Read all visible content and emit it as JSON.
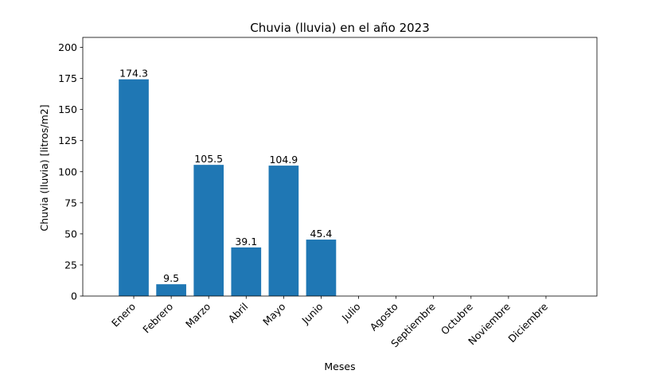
{
  "chart_data": {
    "type": "bar",
    "title": "Chuvia (lluvia) en el año 2023",
    "xlabel": "Meses",
    "ylabel": "Chuvia (lluvia) [litros/m2]",
    "categories": [
      "Enero",
      "Febrero",
      "Marzo",
      "Abril",
      "Mayo",
      "Junio",
      "Julio",
      "Agosto",
      "Septiembre",
      "Octubre",
      "Noviembre",
      "Diciembre"
    ],
    "values": [
      174.3,
      9.5,
      105.5,
      39.1,
      104.9,
      45.4,
      null,
      null,
      null,
      null,
      null,
      null
    ],
    "data_labels": [
      "174.3",
      "9.5",
      "105.5",
      "39.1",
      "104.9",
      "45.4",
      "",
      "",
      "",
      "",
      "",
      ""
    ],
    "ylim": [
      0,
      208
    ],
    "yticks": [
      0,
      25,
      50,
      75,
      100,
      125,
      150,
      175,
      200
    ],
    "grid": false,
    "bar_color": "#1f77b4"
  }
}
